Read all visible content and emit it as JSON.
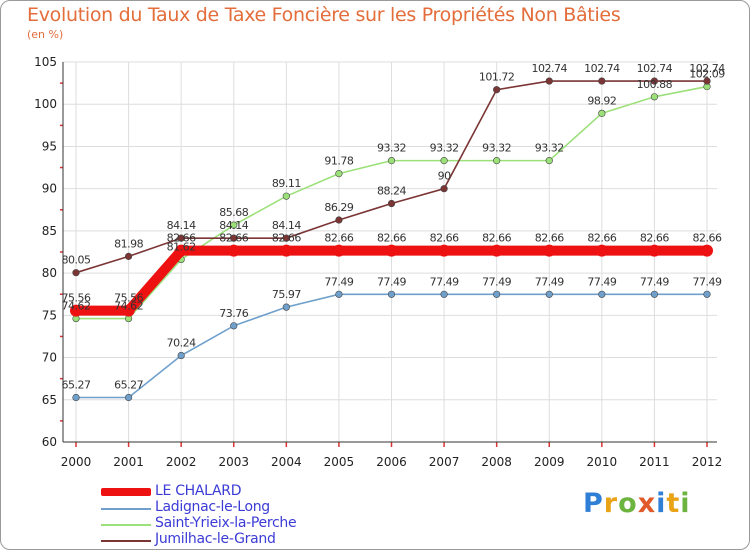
{
  "title": "Evolution du Taux de Taxe Foncière sur les Propriétés Non Bâties",
  "unit_label": "(en %)",
  "logo": {
    "text": [
      "P",
      "r",
      "o",
      "x",
      "i",
      "t",
      "i"
    ],
    "colors": [
      "#2f7fd6",
      "#e8a317",
      "#6db33f",
      "#e05a2b",
      "#2f7fd6",
      "#e8a317",
      "#6db33f"
    ]
  },
  "chart_data": {
    "type": "line",
    "title": "Evolution du Taux de Taxe Foncière sur les Propriétés Non Bâties",
    "ylabel": "(en %)",
    "xlabel": "",
    "ylim": [
      60,
      105
    ],
    "yticks": [
      60,
      65,
      70,
      75,
      80,
      85,
      90,
      95,
      100,
      105
    ],
    "grid": true,
    "legend_position": "bottom-left",
    "x": [
      2000,
      2001,
      2002,
      2003,
      2004,
      2005,
      2006,
      2007,
      2008,
      2009,
      2010,
      2011,
      2012
    ],
    "series": [
      {
        "name": "LE CHALARD",
        "color": "#ee1111",
        "values": [
          75.56,
          75.56,
          82.66,
          82.66,
          82.66,
          82.66,
          82.66,
          82.66,
          82.66,
          82.66,
          82.66,
          82.66,
          82.66
        ],
        "labels": [
          "75.56",
          "75.56",
          "82.66",
          "82.66",
          "82.66",
          "82.66",
          "82.66",
          "82.66",
          "82.66",
          "82.66",
          "82.66",
          "82.66",
          "82.66"
        ]
      },
      {
        "name": "Ladignac-le-Long",
        "color": "#6fa0cc",
        "values": [
          65.27,
          65.27,
          70.24,
          73.76,
          75.97,
          77.49,
          77.49,
          77.49,
          77.49,
          77.49,
          77.49,
          77.49,
          77.49
        ],
        "labels": [
          "65.27",
          "65.27",
          "70.24",
          "73.76",
          "75.97",
          "77.49",
          "77.49",
          "77.49",
          "77.49",
          "77.49",
          "77.49",
          "77.49",
          "77.49"
        ]
      },
      {
        "name": "Saint-Yrieix-la-Perche",
        "color": "#9ce07a",
        "values": [
          74.62,
          74.62,
          81.62,
          85.68,
          89.11,
          91.78,
          93.32,
          93.32,
          93.32,
          93.32,
          98.92,
          100.88,
          102.09
        ],
        "labels": [
          "74.62",
          "74.62",
          "81.62",
          "85.68",
          "89.11",
          "91.78",
          "93.32",
          "93.32",
          "93.32",
          "93.32",
          "98.92",
          "100.88",
          "102.09"
        ]
      },
      {
        "name": "Jumilhac-le-Grand",
        "color": "#7b3535",
        "values": [
          80.05,
          81.98,
          84.14,
          84.14,
          84.14,
          86.29,
          88.24,
          90,
          101.72,
          102.74,
          102.74,
          102.74,
          102.74
        ],
        "labels": [
          "80.05",
          "81.98",
          "84.14",
          "84.14",
          "84.14",
          "86.29",
          "88.24",
          "90",
          "101.72",
          "102.74",
          "102.74",
          "102.74",
          "102.74"
        ]
      }
    ]
  }
}
